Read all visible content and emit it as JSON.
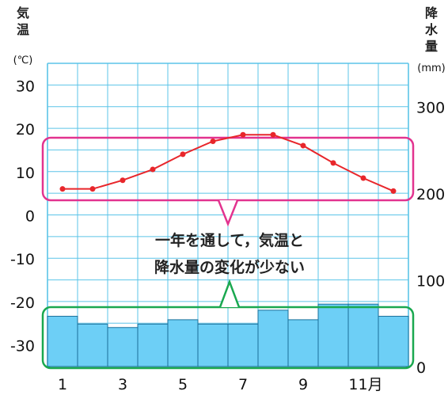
{
  "chart_data": {
    "type": "climograph",
    "y_left_title": [
      "気",
      "温"
    ],
    "y_left_unit": "(℃)",
    "y_right_title": [
      "降",
      "水",
      "量"
    ],
    "y_right_unit": "(mm)",
    "x_tick_labels": [
      "1",
      "",
      "3",
      "",
      "5",
      "",
      "7",
      "",
      "9",
      "",
      "11月",
      ""
    ],
    "y_left_ticks": [
      "30",
      "20",
      "10",
      "0",
      "-10",
      "-20",
      "-30"
    ],
    "y_left_tick_values": [
      30,
      20,
      10,
      0,
      -10,
      -20,
      -30
    ],
    "y_right_ticks": [
      "300",
      "200",
      "100",
      "0"
    ],
    "y_right_tick_values": [
      300,
      200,
      100,
      0
    ],
    "ylim_temperature": [
      -35,
      35
    ],
    "ylim_precipitation": [
      0,
      350
    ],
    "temperature": {
      "months": [
        1,
        2,
        3,
        4,
        5,
        6,
        7,
        8,
        9,
        10,
        11,
        12
      ],
      "values": [
        6,
        6,
        8,
        10.5,
        14,
        17,
        18.5,
        18.5,
        16,
        12,
        8.5,
        5.5
      ]
    },
    "precipitation": {
      "months": [
        1,
        2,
        3,
        4,
        5,
        6,
        7,
        8,
        9,
        10,
        11,
        12
      ],
      "values": [
        58,
        49,
        45,
        49,
        54,
        49,
        49,
        65,
        54,
        72,
        72,
        58
      ]
    },
    "grid": true,
    "annotation": [
      "一年を通して，気温と",
      "降水量の変化が少ない"
    ],
    "colors": {
      "temperature_line": "#e8262b",
      "precip_fill": "#6dcff6",
      "precip_stroke": "#1a6f9a",
      "grid": "#5bc4e8",
      "temperature_bracket": "#e2338f",
      "precip_bracket": "#1aa84f"
    }
  }
}
